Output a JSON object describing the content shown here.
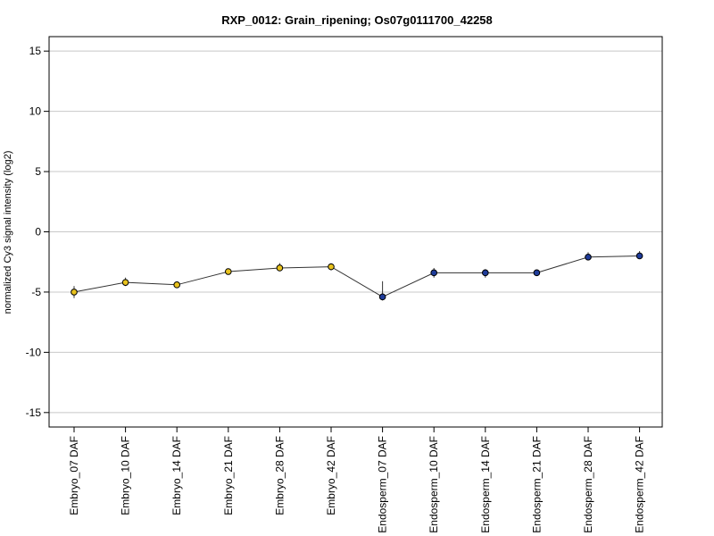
{
  "chart_data": {
    "type": "line",
    "title": "RXP_0012: Grain_ripening; Os07g0111700_42258",
    "xlabel": "",
    "ylabel": "normalized Cy3 signal intensity (log2)",
    "ylim": [
      -16.2,
      16.2
    ],
    "yticks": [
      15,
      10,
      5,
      0,
      -5,
      -10,
      -15
    ],
    "grid": true,
    "categories": [
      "Embryo_07 DAF",
      "Embryo_10 DAF",
      "Embryo_14 DAF",
      "Embryo_21 DAF",
      "Embryo_28 DAF",
      "Embryo_42 DAF",
      "Endosperm_07 DAF",
      "Endosperm_10 DAF",
      "Endosperm_14 DAF",
      "Endosperm_21 DAF",
      "Endosperm_28 DAF",
      "Endosperm_42 DAF"
    ],
    "values": [
      -5.0,
      -4.2,
      -4.4,
      -3.3,
      -3.0,
      -2.9,
      -5.4,
      -3.4,
      -3.4,
      -3.4,
      -2.1,
      -2.0
    ],
    "error_low": [
      -5.5,
      -4.5,
      -4.6,
      -3.5,
      -3.2,
      -3.2,
      -5.7,
      -3.8,
      -3.8,
      -3.6,
      -2.3,
      -2.2
    ],
    "error_high": [
      -4.5,
      -3.8,
      -4.2,
      -3.1,
      -2.6,
      -2.6,
      -4.1,
      -3.0,
      -3.1,
      -3.2,
      -1.7,
      -1.6
    ],
    "point_colors": [
      "#e8c21d",
      "#e8c21d",
      "#e8c21d",
      "#e8c21d",
      "#e8c21d",
      "#e8c21d",
      "#1f3c9a",
      "#1f3c9a",
      "#1f3c9a",
      "#1f3c9a",
      "#1f3c9a",
      "#1f3c9a"
    ],
    "line_color": "#333333",
    "grid_color": "#c8c8c8"
  }
}
